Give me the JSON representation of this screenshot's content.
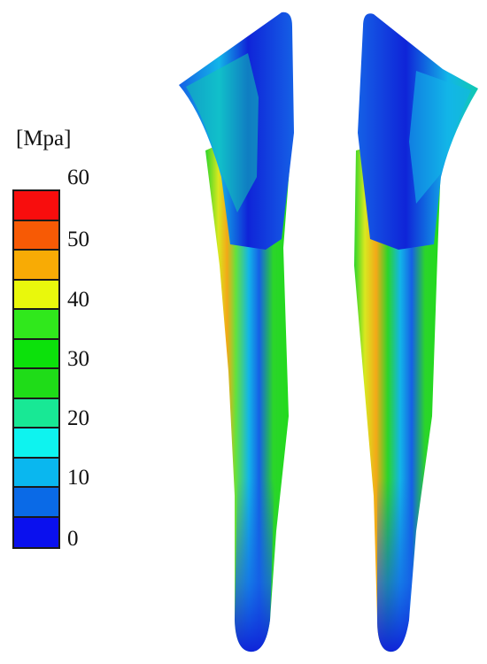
{
  "legend": {
    "unit": "[Mpa]",
    "ticks": [
      "60",
      "50",
      "40",
      "30",
      "20",
      "10",
      "0"
    ],
    "bands": [
      "#f80d0d",
      "#f75a05",
      "#f8ab05",
      "#e9f80c",
      "#30e81c",
      "#0ce10b",
      "#1fdc18",
      "#18e895",
      "#0ef3ef",
      "#0ab7ef",
      "#0a6ae7",
      "#0a10ee"
    ]
  },
  "figure": {
    "description_icons": [
      "left-implant",
      "right-implant"
    ],
    "colors": {
      "dark_blue": "#0f24d8",
      "mid_blue": "#1560e6",
      "cyan": "#12b5e8",
      "teal": "#11c9b0",
      "green": "#2bd52a",
      "light_green": "#64e23c",
      "yellow": "#d8e820",
      "orange": "#f3a818",
      "red_orange": "#e85a14"
    }
  }
}
